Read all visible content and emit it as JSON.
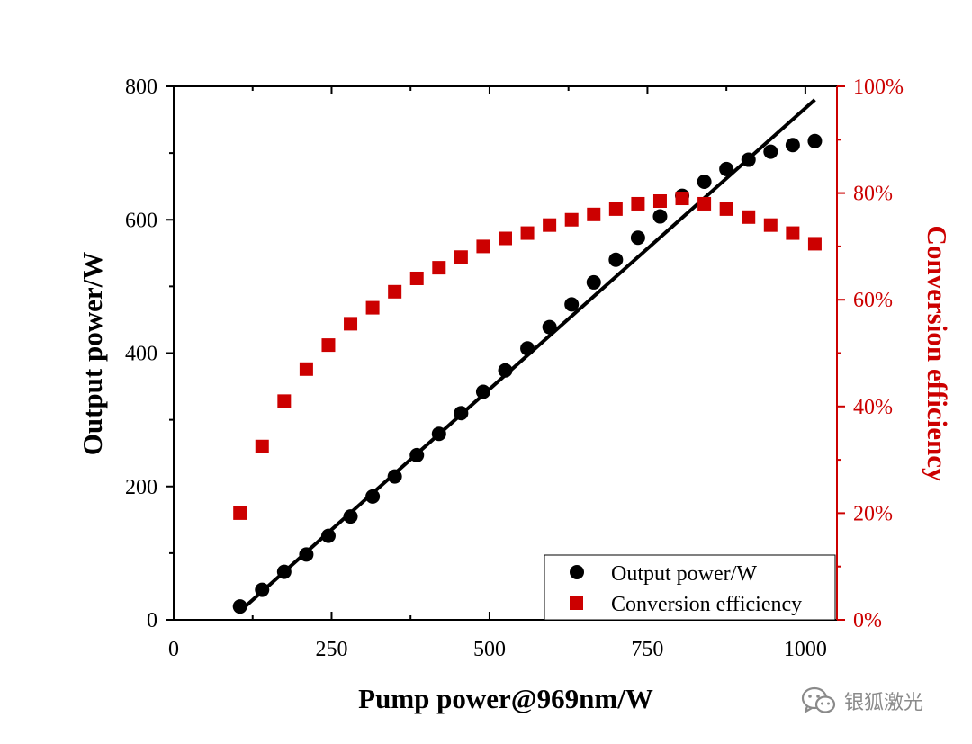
{
  "chart_data": {
    "type": "scatter",
    "title": "",
    "xlabel": "Pump power@969nm/W",
    "ylabel": "Output power/W",
    "y2label": "Conversion efficiency",
    "xlim": [
      0,
      1050
    ],
    "ylim": [
      0,
      800
    ],
    "y2lim": [
      0,
      100
    ],
    "xticks": [
      0,
      250,
      500,
      750,
      1000
    ],
    "yticks": [
      0,
      200,
      400,
      600,
      800
    ],
    "y2ticks": [
      0,
      20,
      40,
      60,
      80,
      100
    ],
    "y2tick_labels": [
      "0%",
      "20%",
      "40%",
      "60%",
      "80%",
      "100%"
    ],
    "grid": false,
    "legend_position": "bottom-right",
    "colors": {
      "output": "#000000",
      "efficiency": "#cc0000"
    },
    "series": [
      {
        "name": "Output power/W",
        "axis": "left",
        "marker": "circle",
        "x": [
          105,
          140,
          175,
          210,
          245,
          280,
          315,
          350,
          385,
          420,
          455,
          490,
          525,
          560,
          595,
          630,
          665,
          700,
          735,
          770,
          805,
          840,
          875,
          910,
          945,
          980,
          1015
        ],
        "y": [
          20,
          45,
          72,
          98,
          126,
          155,
          185,
          215,
          247,
          279,
          310,
          342,
          374,
          407,
          439,
          473,
          506,
          540,
          573,
          605,
          636,
          657,
          676,
          690,
          702,
          712,
          718
        ]
      },
      {
        "name": "Conversion efficiency",
        "axis": "right",
        "marker": "square",
        "x": [
          105,
          140,
          175,
          210,
          245,
          280,
          315,
          350,
          385,
          420,
          455,
          490,
          525,
          560,
          595,
          630,
          665,
          700,
          735,
          770,
          805,
          840,
          875,
          910,
          945,
          980,
          1015
        ],
        "y": [
          20,
          32.5,
          41,
          47,
          51.5,
          55.5,
          58.5,
          61.5,
          64,
          66,
          68,
          70,
          71.5,
          72.5,
          74,
          75,
          76,
          77,
          78,
          78.5,
          79,
          78,
          77,
          75.5,
          74,
          72.5,
          70.5
        ]
      }
    ],
    "fit_line": {
      "name": "linear fit",
      "x": [
        105,
        1015
      ],
      "y": [
        13,
        780
      ]
    }
  },
  "watermark": {
    "text": "银狐激光",
    "icon": "wechat-icon"
  }
}
